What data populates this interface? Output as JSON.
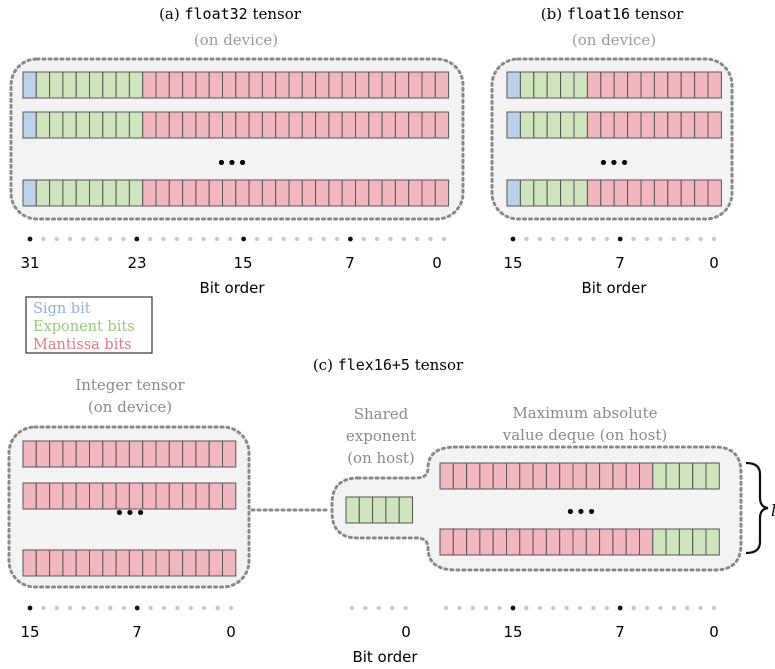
{
  "panel_a": {
    "prefix": "(a) ",
    "dtype": "float32",
    "suffix": " tensor",
    "location": "(on device)",
    "rows": [
      {
        "sign": 1,
        "exponent": 8,
        "mantissa": 23
      },
      {
        "sign": 1,
        "exponent": 8,
        "mantissa": 23
      },
      {
        "sign": 1,
        "exponent": 8,
        "mantissa": 23
      }
    ],
    "ellipsis": "•••",
    "tick_labels": [
      "31",
      "23",
      "15",
      "7",
      "0"
    ],
    "axis_label": "Bit order"
  },
  "panel_b": {
    "prefix": "(b) ",
    "dtype": "float16",
    "suffix": " tensor",
    "location": "(on device)",
    "rows": [
      {
        "sign": 1,
        "exponent": 5,
        "mantissa": 10
      },
      {
        "sign": 1,
        "exponent": 5,
        "mantissa": 10
      },
      {
        "sign": 1,
        "exponent": 5,
        "mantissa": 10
      }
    ],
    "ellipsis": "•••",
    "tick_labels": [
      "15",
      "7",
      "0"
    ],
    "axis_label": "Bit order"
  },
  "legend": {
    "items": [
      {
        "label": "Sign bit",
        "color": "#8fb3d9"
      },
      {
        "label": "Exponent bits",
        "color": "#9cc97e"
      },
      {
        "label": "Mantissa bits",
        "color": "#e07a84"
      }
    ]
  },
  "panel_c": {
    "prefix": "(c) ",
    "dtype": "flex16+5",
    "suffix": " tensor",
    "integer_title_1": "Integer tensor",
    "integer_title_2": "(on device)",
    "shared_title_1": "Shared",
    "shared_title_2": "exponent",
    "shared_title_3": "(on host)",
    "deque_title_1": "Maximum absolute",
    "deque_title_2": "value deque (on host)",
    "ellipsis_left": "•••",
    "ellipsis_right": "•••",
    "brace_label": "l",
    "int_ticks": [
      "15",
      "7",
      "0"
    ],
    "shared_ticks": [
      "0"
    ],
    "deque_ticks": [
      "15",
      "7",
      "0"
    ],
    "axis_label": "Bit order"
  },
  "colors": {
    "sign": "#b9d4ea",
    "exponent": "#cfe6bd",
    "mantissa": "#f2b6bf",
    "cell_stroke": "#555555",
    "container_fill": "#f3f3f3",
    "container_stroke": "#888888",
    "gray_text": "#8a8a8a",
    "dot_gray": "#c8c8c8"
  }
}
